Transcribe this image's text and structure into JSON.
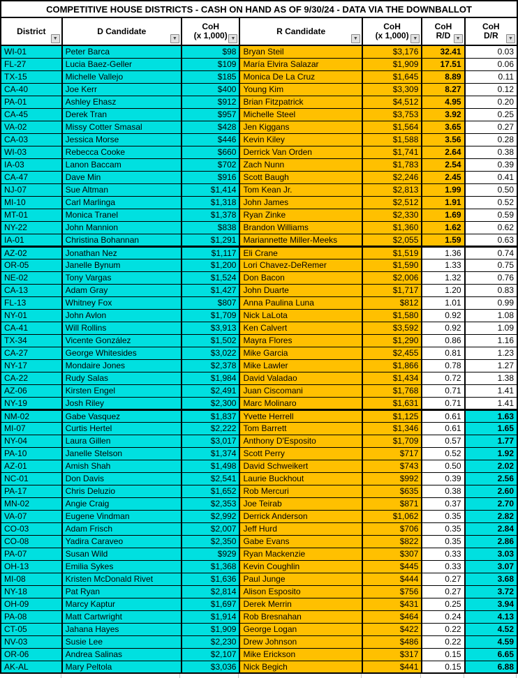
{
  "title": "COMPETITIVE HOUSE DISTRICTS - CASH ON HAND AS OF 9/30/24 - DATA VIA THE DOWNBALLOT",
  "colors": {
    "dem_cyan": "#00E0E0",
    "rep_gold": "#FFC000"
  },
  "filter_icon": "▼",
  "columns": [
    {
      "line1": "District",
      "line2": ""
    },
    {
      "line1": "D Candidate",
      "line2": ""
    },
    {
      "line1": "CoH",
      "line2": "(x 1,000)"
    },
    {
      "line1": "R Candidate",
      "line2": ""
    },
    {
      "line1": "CoH",
      "line2": "(x 1,000)"
    },
    {
      "line1": "CoH",
      "line2": "R/D"
    },
    {
      "line1": "CoH",
      "line2": "D/R"
    }
  ],
  "highlight_threshold": 1.5,
  "rows": [
    {
      "district": "WI-01",
      "d_candidate": "Peter Barca",
      "d_coh": "$98",
      "r_candidate": "Bryan Steil",
      "r_coh": "$3,176",
      "coh_rd": "32.41",
      "coh_dr": "0.03"
    },
    {
      "district": "FL-27",
      "d_candidate": "Lucia Baez-Geller",
      "d_coh": "$109",
      "r_candidate": "María Elvira Salazar",
      "r_coh": "$1,909",
      "coh_rd": "17.51",
      "coh_dr": "0.06"
    },
    {
      "district": "TX-15",
      "d_candidate": "Michelle Vallejo",
      "d_coh": "$185",
      "r_candidate": "Monica De La Cruz",
      "r_coh": "$1,645",
      "coh_rd": "8.89",
      "coh_dr": "0.11"
    },
    {
      "district": "CA-40",
      "d_candidate": "Joe Kerr",
      "d_coh": "$400",
      "r_candidate": "Young Kim",
      "r_coh": "$3,309",
      "coh_rd": "8.27",
      "coh_dr": "0.12"
    },
    {
      "district": "PA-01",
      "d_candidate": "Ashley Ehasz",
      "d_coh": "$912",
      "r_candidate": "Brian Fitzpatrick",
      "r_coh": "$4,512",
      "coh_rd": "4.95",
      "coh_dr": "0.20"
    },
    {
      "district": "CA-45",
      "d_candidate": "Derek Tran",
      "d_coh": "$957",
      "r_candidate": "Michelle Steel",
      "r_coh": "$3,753",
      "coh_rd": "3.92",
      "coh_dr": "0.25"
    },
    {
      "district": "VA-02",
      "d_candidate": "Missy Cotter Smasal",
      "d_coh": "$428",
      "r_candidate": "Jen Kiggans",
      "r_coh": "$1,564",
      "coh_rd": "3.65",
      "coh_dr": "0.27"
    },
    {
      "district": "CA-03",
      "d_candidate": "Jessica Morse",
      "d_coh": "$446",
      "r_candidate": "Kevin Kiley",
      "r_coh": "$1,588",
      "coh_rd": "3.56",
      "coh_dr": "0.28"
    },
    {
      "district": "WI-03",
      "d_candidate": "Rebecca Cooke",
      "d_coh": "$660",
      "r_candidate": "Derrick Van Orden",
      "r_coh": "$1,741",
      "coh_rd": "2.64",
      "coh_dr": "0.38"
    },
    {
      "district": "IA-03",
      "d_candidate": "Lanon Baccam",
      "d_coh": "$702",
      "r_candidate": "Zach Nunn",
      "r_coh": "$1,783",
      "coh_rd": "2.54",
      "coh_dr": "0.39"
    },
    {
      "district": "CA-47",
      "d_candidate": "Dave Min",
      "d_coh": "$916",
      "r_candidate": "Scott Baugh",
      "r_coh": "$2,246",
      "coh_rd": "2.45",
      "coh_dr": "0.41"
    },
    {
      "district": "NJ-07",
      "d_candidate": "Sue Altman",
      "d_coh": "$1,414",
      "r_candidate": "Tom Kean Jr.",
      "r_coh": "$2,813",
      "coh_rd": "1.99",
      "coh_dr": "0.50"
    },
    {
      "district": "MI-10",
      "d_candidate": "Carl Marlinga",
      "d_coh": "$1,318",
      "r_candidate": "John James",
      "r_coh": "$2,512",
      "coh_rd": "1.91",
      "coh_dr": "0.52"
    },
    {
      "district": "MT-01",
      "d_candidate": "Monica Tranel",
      "d_coh": "$1,378",
      "r_candidate": "Ryan Zinke",
      "r_coh": "$2,330",
      "coh_rd": "1.69",
      "coh_dr": "0.59"
    },
    {
      "district": "NY-22",
      "d_candidate": "John Mannion",
      "d_coh": "$838",
      "r_candidate": "Brandon Williams",
      "r_coh": "$1,360",
      "coh_rd": "1.62",
      "coh_dr": "0.62"
    },
    {
      "district": "IA-01",
      "d_candidate": "Christina Bohannan",
      "d_coh": "$1,291",
      "r_candidate": "Mariannette Miller-Meeks",
      "r_coh": "$2,055",
      "coh_rd": "1.59",
      "coh_dr": "0.63",
      "section_break_after": true
    },
    {
      "district": "AZ-02",
      "d_candidate": "Jonathan Nez",
      "d_coh": "$1,117",
      "r_candidate": "Eli Crane",
      "r_coh": "$1,519",
      "coh_rd": "1.36",
      "coh_dr": "0.74"
    },
    {
      "district": "OR-05",
      "d_candidate": "Janelle Bynum",
      "d_coh": "$1,200",
      "r_candidate": "Lori Chavez-DeRemer",
      "r_coh": "$1,590",
      "coh_rd": "1.33",
      "coh_dr": "0.75"
    },
    {
      "district": "NE-02",
      "d_candidate": "Tony Vargas",
      "d_coh": "$1,524",
      "r_candidate": "Don Bacon",
      "r_coh": "$2,006",
      "coh_rd": "1.32",
      "coh_dr": "0.76"
    },
    {
      "district": "CA-13",
      "d_candidate": "Adam Gray",
      "d_coh": "$1,427",
      "r_candidate": "John Duarte",
      "r_coh": "$1,717",
      "coh_rd": "1.20",
      "coh_dr": "0.83"
    },
    {
      "district": "FL-13",
      "d_candidate": "Whitney Fox",
      "d_coh": "$807",
      "r_candidate": "Anna Paulina Luna",
      "r_coh": "$812",
      "coh_rd": "1.01",
      "coh_dr": "0.99"
    },
    {
      "district": "NY-01",
      "d_candidate": "John Avlon",
      "d_coh": "$1,709",
      "r_candidate": "Nick LaLota",
      "r_coh": "$1,580",
      "coh_rd": "0.92",
      "coh_dr": "1.08"
    },
    {
      "district": "CA-41",
      "d_candidate": "Will Rollins",
      "d_coh": "$3,913",
      "r_candidate": "Ken Calvert",
      "r_coh": "$3,592",
      "coh_rd": "0.92",
      "coh_dr": "1.09"
    },
    {
      "district": "TX-34",
      "d_candidate": "Vicente González",
      "d_coh": "$1,502",
      "r_candidate": "Mayra Flores",
      "r_coh": "$1,290",
      "coh_rd": "0.86",
      "coh_dr": "1.16"
    },
    {
      "district": "CA-27",
      "d_candidate": "George Whitesides",
      "d_coh": "$3,022",
      "r_candidate": "Mike Garcia",
      "r_coh": "$2,455",
      "coh_rd": "0.81",
      "coh_dr": "1.23"
    },
    {
      "district": "NY-17",
      "d_candidate": "Mondaire Jones",
      "d_coh": "$2,378",
      "r_candidate": "Mike Lawler",
      "r_coh": "$1,866",
      "coh_rd": "0.78",
      "coh_dr": "1.27"
    },
    {
      "district": "CA-22",
      "d_candidate": "Rudy Salas",
      "d_coh": "$1,984",
      "r_candidate": "David Valadao",
      "r_coh": "$1,434",
      "coh_rd": "0.72",
      "coh_dr": "1.38"
    },
    {
      "district": "AZ-06",
      "d_candidate": "Kirsten Engel",
      "d_coh": "$2,491",
      "r_candidate": "Juan Ciscomani",
      "r_coh": "$1,768",
      "coh_rd": "0.71",
      "coh_dr": "1.41"
    },
    {
      "district": "NY-19",
      "d_candidate": "Josh Riley",
      "d_coh": "$2,300",
      "r_candidate": "Marc Molinaro",
      "r_coh": "$1,631",
      "coh_rd": "0.71",
      "coh_dr": "1.41",
      "section_break_after": true
    },
    {
      "district": "NM-02",
      "d_candidate": "Gabe Vasquez",
      "d_coh": "$1,837",
      "r_candidate": "Yvette Herrell",
      "r_coh": "$1,125",
      "coh_rd": "0.61",
      "coh_dr": "1.63"
    },
    {
      "district": "MI-07",
      "d_candidate": "Curtis Hertel",
      "d_coh": "$2,222",
      "r_candidate": "Tom Barrett",
      "r_coh": "$1,346",
      "coh_rd": "0.61",
      "coh_dr": "1.65"
    },
    {
      "district": "NY-04",
      "d_candidate": "Laura Gillen",
      "d_coh": "$3,017",
      "r_candidate": "Anthony D'Esposito",
      "r_coh": "$1,709",
      "coh_rd": "0.57",
      "coh_dr": "1.77"
    },
    {
      "district": "PA-10",
      "d_candidate": "Janelle Stelson",
      "d_coh": "$1,374",
      "r_candidate": "Scott Perry",
      "r_coh": "$717",
      "coh_rd": "0.52",
      "coh_dr": "1.92"
    },
    {
      "district": "AZ-01",
      "d_candidate": "Amish Shah",
      "d_coh": "$1,498",
      "r_candidate": "David Schweikert",
      "r_coh": "$743",
      "coh_rd": "0.50",
      "coh_dr": "2.02"
    },
    {
      "district": "NC-01",
      "d_candidate": "Don Davis",
      "d_coh": "$2,541",
      "r_candidate": "Laurie Buckhout",
      "r_coh": "$992",
      "coh_rd": "0.39",
      "coh_dr": "2.56"
    },
    {
      "district": "PA-17",
      "d_candidate": "Chris Deluzio",
      "d_coh": "$1,652",
      "r_candidate": "Rob Mercuri",
      "r_coh": "$635",
      "coh_rd": "0.38",
      "coh_dr": "2.60"
    },
    {
      "district": "MN-02",
      "d_candidate": "Angie Craig",
      "d_coh": "$2,353",
      "r_candidate": "Joe Teirab",
      "r_coh": "$871",
      "coh_rd": "0.37",
      "coh_dr": "2.70"
    },
    {
      "district": "VA-07",
      "d_candidate": "Eugene Vindman",
      "d_coh": "$2,992",
      "r_candidate": "Derrick Anderson",
      "r_coh": "$1,062",
      "coh_rd": "0.35",
      "coh_dr": "2.82"
    },
    {
      "district": "CO-03",
      "d_candidate": "Adam Frisch",
      "d_coh": "$2,007",
      "r_candidate": "Jeff Hurd",
      "r_coh": "$706",
      "coh_rd": "0.35",
      "coh_dr": "2.84"
    },
    {
      "district": "CO-08",
      "d_candidate": "Yadira Caraveo",
      "d_coh": "$2,350",
      "r_candidate": "Gabe Evans",
      "r_coh": "$822",
      "coh_rd": "0.35",
      "coh_dr": "2.86"
    },
    {
      "district": "PA-07",
      "d_candidate": "Susan Wild",
      "d_coh": "$929",
      "r_candidate": "Ryan Mackenzie",
      "r_coh": "$307",
      "coh_rd": "0.33",
      "coh_dr": "3.03"
    },
    {
      "district": "OH-13",
      "d_candidate": "Emilia Sykes",
      "d_coh": "$1,368",
      "r_candidate": "Kevin Coughlin",
      "r_coh": "$445",
      "coh_rd": "0.33",
      "coh_dr": "3.07"
    },
    {
      "district": "MI-08",
      "d_candidate": "Kristen McDonald Rivet",
      "d_coh": "$1,636",
      "r_candidate": "Paul Junge",
      "r_coh": "$444",
      "coh_rd": "0.27",
      "coh_dr": "3.68"
    },
    {
      "district": "NY-18",
      "d_candidate": "Pat Ryan",
      "d_coh": "$2,814",
      "r_candidate": "Alison Esposito",
      "r_coh": "$756",
      "coh_rd": "0.27",
      "coh_dr": "3.72"
    },
    {
      "district": "OH-09",
      "d_candidate": "Marcy Kaptur",
      "d_coh": "$1,697",
      "r_candidate": "Derek Merrin",
      "r_coh": "$431",
      "coh_rd": "0.25",
      "coh_dr": "3.94"
    },
    {
      "district": "PA-08",
      "d_candidate": "Matt Cartwright",
      "d_coh": "$1,914",
      "r_candidate": "Rob Bresnahan",
      "r_coh": "$464",
      "coh_rd": "0.24",
      "coh_dr": "4.13"
    },
    {
      "district": "CT-05",
      "d_candidate": "Jahana Hayes",
      "d_coh": "$1,909",
      "r_candidate": "George Logan",
      "r_coh": "$422",
      "coh_rd": "0.22",
      "coh_dr": "4.52"
    },
    {
      "district": "NV-03",
      "d_candidate": "Susie Lee",
      "d_coh": "$2,230",
      "r_candidate": "Drew Johnson",
      "r_coh": "$486",
      "coh_rd": "0.22",
      "coh_dr": "4.59"
    },
    {
      "district": "OR-06",
      "d_candidate": "Andrea Salinas",
      "d_coh": "$2,107",
      "r_candidate": "Mike Erickson",
      "r_coh": "$317",
      "coh_rd": "0.15",
      "coh_dr": "6.65"
    },
    {
      "district": "AK-AL",
      "d_candidate": "Mary Peltola",
      "d_coh": "$3,036",
      "r_candidate": "Nick Begich",
      "r_coh": "$441",
      "coh_rd": "0.15",
      "coh_dr": "6.88"
    }
  ]
}
